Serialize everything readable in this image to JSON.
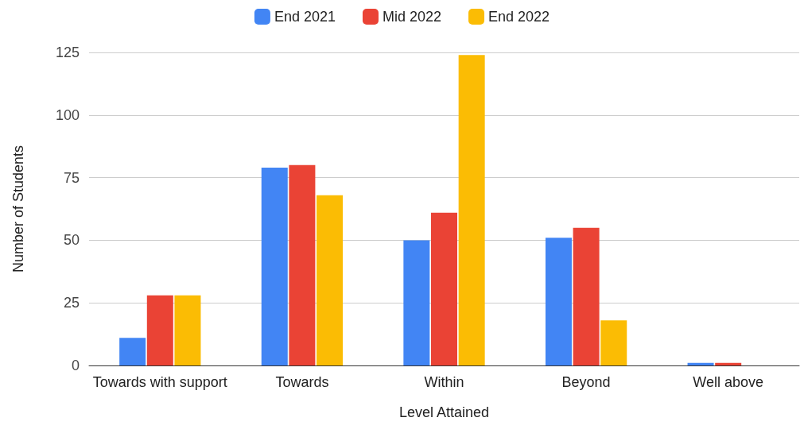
{
  "chart_data": {
    "type": "bar",
    "xlabel": "Level Attained",
    "ylabel": "Number of Students",
    "categories": [
      "Towards with support",
      "Towards",
      "Within",
      "Beyond",
      "Well above"
    ],
    "series": [
      {
        "name": "End 2021",
        "color": "#4285f4",
        "values": [
          11,
          79,
          50,
          51,
          1
        ]
      },
      {
        "name": "Mid 2022",
        "color": "#ea4335",
        "values": [
          28,
          80,
          61,
          55,
          1
        ]
      },
      {
        "name": "End 2022",
        "color": "#fbbc04",
        "values": [
          28,
          68,
          124,
          18,
          0
        ]
      }
    ],
    "ylim": [
      0,
      125
    ],
    "yticks": [
      0,
      25,
      50,
      75,
      100,
      125
    ],
    "grid": "y",
    "legend": "top"
  }
}
